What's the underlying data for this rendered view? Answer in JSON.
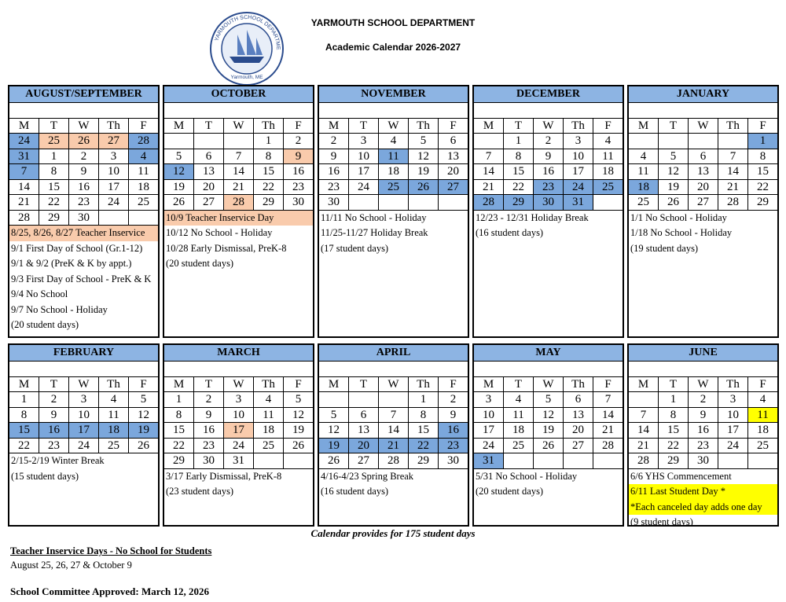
{
  "header": {
    "title": "YARMOUTH SCHOOL DEPARTMENT",
    "subtitle": "Academic Calendar 2026-2027",
    "logo_ring": "YARMOUTH SCHOOL DEPARTMENT",
    "logo_place": "Yarmouth, ME"
  },
  "colors": {
    "b": "#7ba7dc",
    "o": "#f9cbac",
    "y": "#ffff00",
    "head": "#8db4e3"
  },
  "weekdays": [
    "M",
    "T",
    "W",
    "Th",
    "F"
  ],
  "months": [
    {
      "name": "AUGUST/SEPTEMBER",
      "weeks": [
        [
          24,
          25,
          26,
          27,
          28
        ],
        [
          31,
          1,
          2,
          3,
          4
        ],
        [
          7,
          8,
          9,
          10,
          11
        ],
        [
          14,
          15,
          16,
          17,
          18
        ],
        [
          21,
          22,
          23,
          24,
          25
        ],
        [
          28,
          29,
          30,
          null,
          null
        ]
      ],
      "shading": [
        "booob",
        "b...b",
        "b....",
        ".....",
        ".....",
        "....."
      ],
      "notes": [
        "8/25, 8/26, 8/27 Teacher Inservice",
        "9/1 First Day of School (Gr.1-12)",
        "9/1 & 9/2 (PreK & K by appt.)",
        "9/3 First Day of School - PreK & K",
        "9/4 No School",
        "9/7 No School - Holiday",
        "(20 student days)"
      ],
      "note_shading": "o......"
    },
    {
      "name": "OCTOBER",
      "weeks": [
        [
          null,
          null,
          null,
          1,
          2
        ],
        [
          5,
          6,
          7,
          8,
          9
        ],
        [
          12,
          13,
          14,
          15,
          16
        ],
        [
          19,
          20,
          21,
          22,
          23
        ],
        [
          26,
          27,
          28,
          29,
          30
        ]
      ],
      "shading": [
        ".....",
        "....o",
        "b....",
        ".....",
        "..o.."
      ],
      "notes": [
        "10/9  Teacher Inservice Day",
        "10/12  No School - Holiday",
        "10/28 Early Dismissal, PreK-8",
        "(20 student days)"
      ],
      "note_shading": "o..."
    },
    {
      "name": "NOVEMBER",
      "weeks": [
        [
          2,
          3,
          4,
          5,
          6
        ],
        [
          9,
          10,
          11,
          12,
          13
        ],
        [
          16,
          17,
          18,
          19,
          20
        ],
        [
          23,
          24,
          25,
          26,
          27
        ],
        [
          30,
          null,
          null,
          null,
          null
        ]
      ],
      "shading": [
        ".....",
        "..b..",
        ".....",
        "..bbb",
        "....."
      ],
      "notes": [
        "11/11 No School - Holiday",
        "11/25-11/27 Holiday Break",
        "(17 student days)"
      ],
      "note_shading": "..."
    },
    {
      "name": "DECEMBER",
      "weeks": [
        [
          null,
          1,
          2,
          3,
          4
        ],
        [
          7,
          8,
          9,
          10,
          11
        ],
        [
          14,
          15,
          16,
          17,
          18
        ],
        [
          21,
          22,
          23,
          24,
          25
        ],
        [
          28,
          29,
          30,
          31,
          null
        ]
      ],
      "shading": [
        ".....",
        ".....",
        ".....",
        "..bbb",
        "bbbb."
      ],
      "notes": [
        "12/23 - 12/31 Holiday Break",
        "(16 student days)"
      ],
      "note_shading": ".."
    },
    {
      "name": "JANUARY",
      "weeks": [
        [
          null,
          null,
          null,
          null,
          1
        ],
        [
          4,
          5,
          6,
          7,
          8
        ],
        [
          11,
          12,
          13,
          14,
          15
        ],
        [
          18,
          19,
          20,
          21,
          22
        ],
        [
          25,
          26,
          27,
          28,
          29
        ]
      ],
      "shading": [
        "....b",
        ".....",
        ".....",
        "b....",
        "....."
      ],
      "notes": [
        "1/1 No School - Holiday",
        "1/18 No School -  Holiday",
        "(19 student days)"
      ],
      "note_shading": "..."
    },
    {
      "name": "FEBRUARY",
      "weeks": [
        [
          1,
          2,
          3,
          4,
          5
        ],
        [
          8,
          9,
          10,
          11,
          12
        ],
        [
          15,
          16,
          17,
          18,
          19
        ],
        [
          22,
          23,
          24,
          25,
          26
        ]
      ],
      "shading": [
        ".....",
        ".....",
        "bbbbb",
        "....."
      ],
      "notes": [
        "2/15-2/19 Winter Break",
        "(15 student days)"
      ],
      "note_shading": ".."
    },
    {
      "name": "MARCH",
      "weeks": [
        [
          1,
          2,
          3,
          4,
          5
        ],
        [
          8,
          9,
          10,
          11,
          12
        ],
        [
          15,
          16,
          17,
          18,
          19
        ],
        [
          22,
          23,
          24,
          25,
          26
        ],
        [
          29,
          30,
          31,
          null,
          null
        ]
      ],
      "shading": [
        ".....",
        ".....",
        "..o..",
        ".....",
        "....."
      ],
      "notes": [
        "3/17 Early Dismissal, PreK-8",
        "(23 student days)"
      ],
      "note_shading": ".."
    },
    {
      "name": "APRIL",
      "weeks": [
        [
          null,
          null,
          null,
          1,
          2
        ],
        [
          5,
          6,
          7,
          8,
          9
        ],
        [
          12,
          13,
          14,
          15,
          16
        ],
        [
          19,
          20,
          21,
          22,
          23
        ],
        [
          26,
          27,
          28,
          29,
          30
        ]
      ],
      "shading": [
        ".....",
        ".....",
        "....b",
        "bbbbb",
        "....."
      ],
      "notes": [
        "4/16-4/23 Spring Break",
        "(16 student days)"
      ],
      "note_shading": ".."
    },
    {
      "name": "MAY",
      "weeks": [
        [
          3,
          4,
          5,
          6,
          7
        ],
        [
          10,
          11,
          12,
          13,
          14
        ],
        [
          17,
          18,
          19,
          20,
          21
        ],
        [
          24,
          25,
          26,
          27,
          28
        ],
        [
          31,
          null,
          null,
          null,
          null
        ]
      ],
      "shading": [
        ".....",
        ".....",
        ".....",
        ".....",
        "b...."
      ],
      "notes": [
        "5/31 No School - Holiday",
        "(20 student days)"
      ],
      "note_shading": ".."
    },
    {
      "name": "JUNE",
      "weeks": [
        [
          null,
          1,
          2,
          3,
          4
        ],
        [
          7,
          8,
          9,
          10,
          11
        ],
        [
          14,
          15,
          16,
          17,
          18
        ],
        [
          21,
          22,
          23,
          24,
          25
        ],
        [
          28,
          29,
          30,
          null,
          null
        ]
      ],
      "shading": [
        ".....",
        "....y",
        ".....",
        ".....",
        "....."
      ],
      "notes": [
        "6/6 YHS Commencement",
        "6/11 Last Student Day *",
        "*Each canceled day adds one day",
        "(9 student days)"
      ],
      "note_shading": ".yy."
    }
  ],
  "footer": {
    "total": "Calendar provides for 175 student days",
    "inservice_title": "Teacher Inservice Days - No School for Students",
    "inservice_dates": "August 25, 26, 27 & October 9",
    "approved": "School Committee Approved:  March 12, 2026"
  }
}
